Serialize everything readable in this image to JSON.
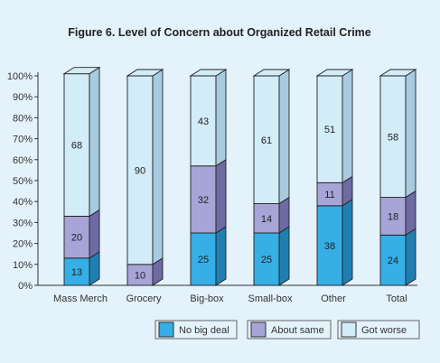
{
  "chart_data": {
    "type": "bar",
    "stacked": true,
    "style": "3d",
    "title": "Figure 6. Level of Concern about Organized Retail Crime",
    "xlabel": "",
    "ylabel": "",
    "ylim": [
      0,
      100
    ],
    "y_ticks": [
      "0%",
      "10%",
      "20%",
      "30%",
      "40%",
      "50%",
      "60%",
      "70%",
      "80%",
      "90%",
      "100%"
    ],
    "categories": [
      "Mass Merch",
      "Grocery",
      "Big-box",
      "Small-box",
      "Other",
      "Total"
    ],
    "series": [
      {
        "name": "No big deal",
        "values": [
          13,
          0,
          25,
          25,
          38,
          24
        ],
        "labels": [
          "13",
          "",
          "25",
          "25",
          "38",
          "24"
        ],
        "color": "#36aee6"
      },
      {
        "name": "About same",
        "values": [
          20,
          10,
          32,
          14,
          11,
          18
        ],
        "labels": [
          "20",
          "10",
          "32",
          "14",
          "11",
          "18"
        ],
        "color": "#a7a4d8"
      },
      {
        "name": "Got worse",
        "values": [
          68,
          90,
          43,
          61,
          51,
          58
        ],
        "labels": [
          "68",
          "90",
          "43",
          "61",
          "51",
          "58"
        ],
        "color": "#d2ecf8"
      }
    ],
    "grid": false,
    "legend_position": "bottom-right",
    "colors": {
      "background": "#e4f2fb",
      "outline": "#222222",
      "side_shade": {
        "No big deal": "#1f7fb3",
        "About same": "#6e6aa3",
        "Got worse": "#a8cbe0"
      }
    }
  }
}
